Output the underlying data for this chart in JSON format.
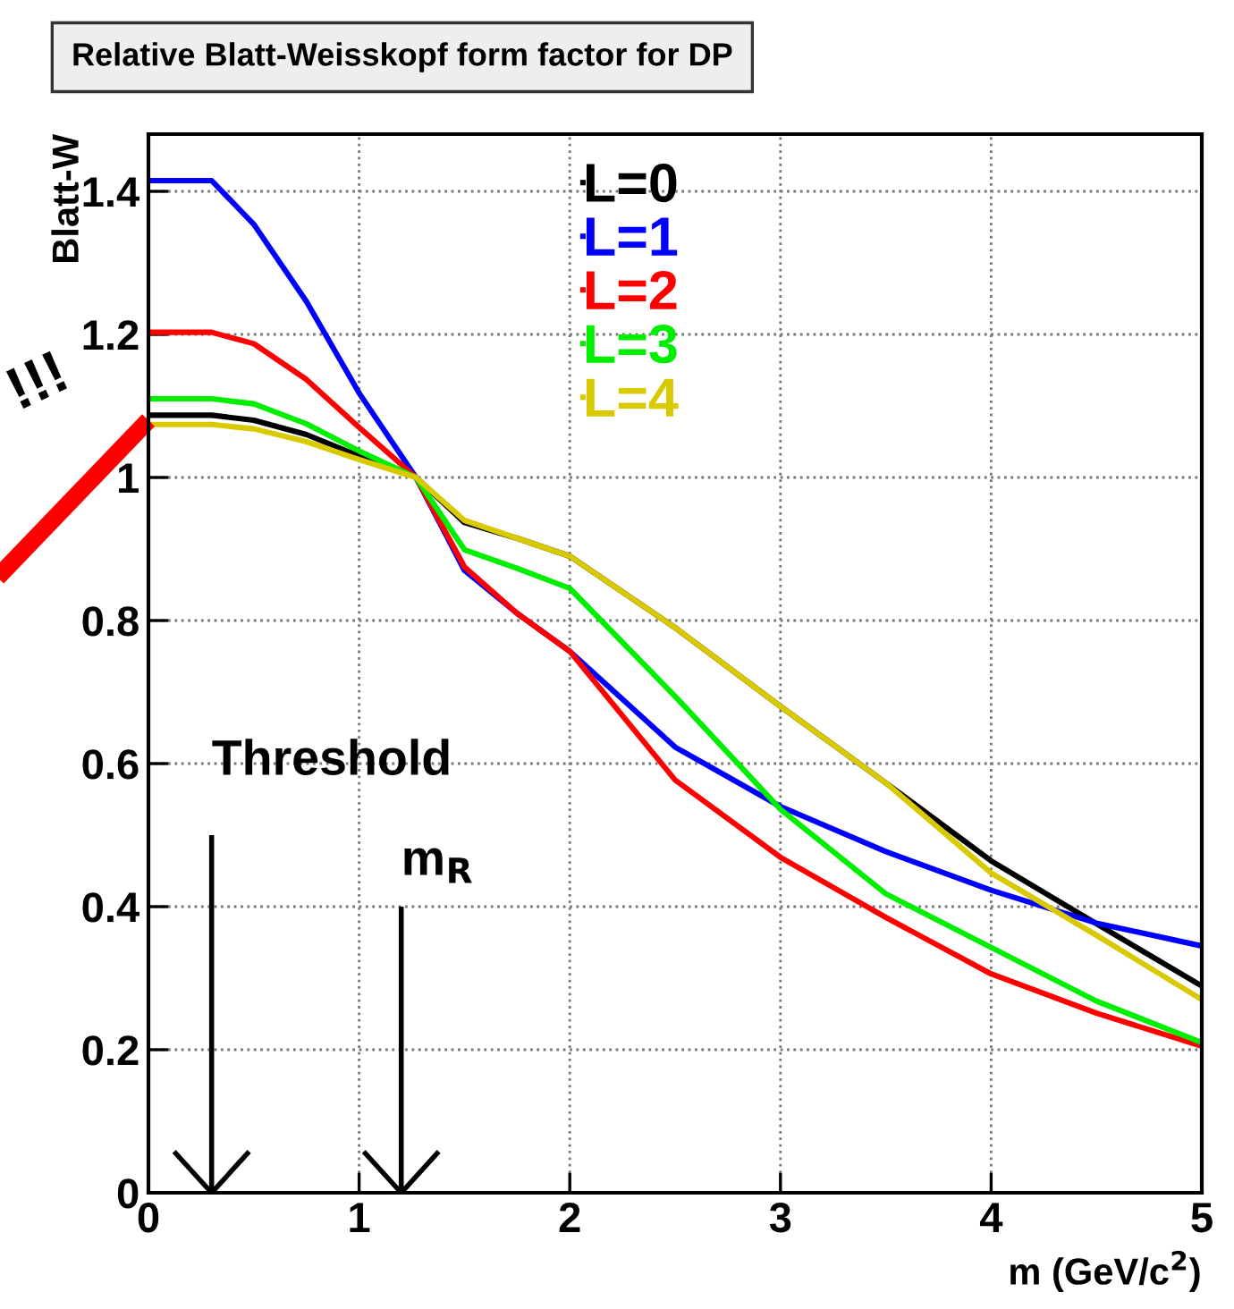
{
  "chart_data": {
    "type": "line",
    "title": "Relative Blatt-Weisskopf form factor for DP",
    "xlabel": "m (GeV/c$^{2}$)",
    "ylabel": "Blatt-W",
    "x": [
      0,
      0.3,
      0.5,
      0.75,
      1,
      1.27,
      1.5,
      1.75,
      2,
      2.5,
      3,
      3.5,
      4,
      4.5,
      5
    ],
    "series": [
      {
        "name": "L=0",
        "color": "#000000",
        "values": [
          1.087,
          1.087,
          1.08,
          1.06,
          1.03,
          1.0,
          0.937,
          0.915,
          0.89,
          0.79,
          0.68,
          0.573,
          0.464,
          0.376,
          0.289
        ]
      },
      {
        "name": "L=1",
        "color": "#0000ff",
        "values": [
          1.415,
          1.415,
          1.354,
          1.246,
          1.118,
          1.0,
          0.87,
          0.81,
          0.757,
          0.623,
          0.54,
          0.477,
          0.423,
          0.377,
          0.345
        ]
      },
      {
        "name": "L=2",
        "color": "#ff0000",
        "values": [
          1.203,
          1.203,
          1.187,
          1.137,
          1.07,
          1.0,
          0.875,
          0.81,
          0.757,
          0.577,
          0.469,
          0.385,
          0.306,
          0.251,
          0.205
        ]
      },
      {
        "name": "L=3",
        "color": "#00ee00",
        "values": [
          1.11,
          1.11,
          1.103,
          1.075,
          1.037,
          1.0,
          0.899,
          0.873,
          0.845,
          0.694,
          0.536,
          0.418,
          0.343,
          0.268,
          0.21
        ]
      },
      {
        "name": "L=4",
        "color": "#d9c900",
        "values": [
          1.074,
          1.074,
          1.068,
          1.05,
          1.025,
          1.0,
          0.94,
          0.915,
          0.89,
          0.79,
          0.68,
          0.573,
          0.447,
          0.36,
          0.27
        ]
      }
    ],
    "xlim": [
      0,
      5
    ],
    "xticks": [
      0,
      1,
      2,
      3,
      4,
      5
    ],
    "ylim": [
      0,
      1.48
    ],
    "yticks": [
      0,
      0.2,
      0.4,
      0.6,
      0.8,
      1,
      1.2,
      1.4
    ],
    "grid": true,
    "legend": "top right",
    "marker": "none",
    "line_style": "solid",
    "ref_lines": [
      {
        "axis": "x",
        "value": 0.3,
        "label": "Threshold"
      },
      {
        "axis": "x",
        "value": 1.2,
        "label": "m$_{R}$"
      }
    ],
    "annotations": [
      "!!!"
    ]
  }
}
